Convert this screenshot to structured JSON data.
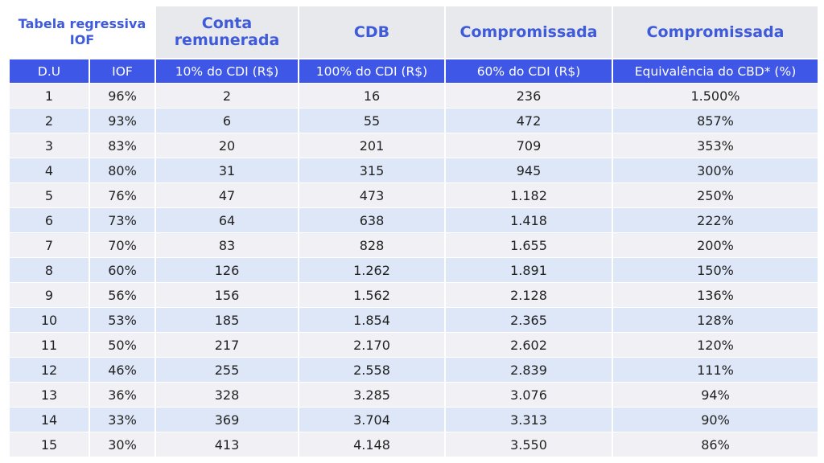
{
  "table": {
    "group_headers": [
      "Tabela regressiva IOF",
      "Conta remunerada",
      "CDB",
      "Compromissada",
      "Compromissada"
    ],
    "columns": [
      "D.U",
      "IOF",
      "10% do CDI (R$)",
      "100% do CDI (R$)",
      "60% do CDI (R$)",
      "Equivalência do CBD* (%)"
    ],
    "rows": [
      [
        "1",
        "96%",
        "2",
        "16",
        "236",
        "1.500%"
      ],
      [
        "2",
        "93%",
        "6",
        "55",
        "472",
        "857%"
      ],
      [
        "3",
        "83%",
        "20",
        "201",
        "709",
        "353%"
      ],
      [
        "4",
        "80%",
        "31",
        "315",
        "945",
        "300%"
      ],
      [
        "5",
        "76%",
        "47",
        "473",
        "1.182",
        "250%"
      ],
      [
        "6",
        "73%",
        "64",
        "638",
        "1.418",
        "222%"
      ],
      [
        "7",
        "70%",
        "83",
        "828",
        "1.655",
        "200%"
      ],
      [
        "8",
        "60%",
        "126",
        "1.262",
        "1.891",
        "150%"
      ],
      [
        "9",
        "56%",
        "156",
        "1.562",
        "2.128",
        "136%"
      ],
      [
        "10",
        "53%",
        "185",
        "1.854",
        "2.365",
        "128%"
      ],
      [
        "11",
        "50%",
        "217",
        "2.170",
        "2.602",
        "120%"
      ],
      [
        "12",
        "46%",
        "255",
        "2.558",
        "2.839",
        "111%"
      ],
      [
        "13",
        "36%",
        "328",
        "3.285",
        "3.076",
        "94%"
      ],
      [
        "14",
        "33%",
        "369",
        "3.704",
        "3.313",
        "90%"
      ],
      [
        "15",
        "30%",
        "413",
        "4.148",
        "3.550",
        "86%"
      ]
    ]
  }
}
